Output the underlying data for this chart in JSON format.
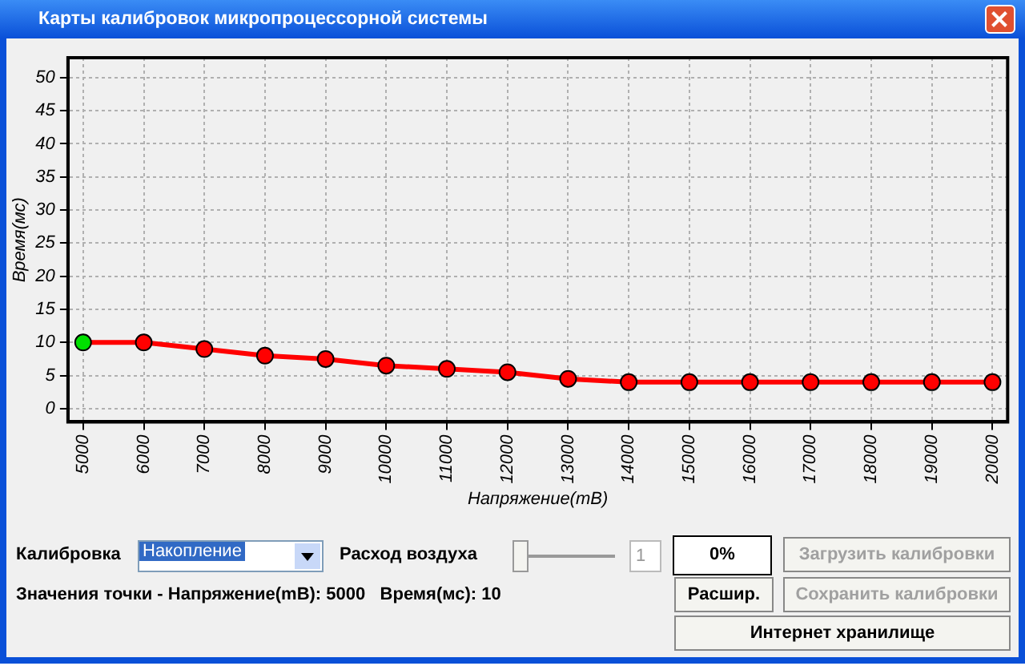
{
  "chart_data": {
    "type": "line",
    "title": "Карты калибровок микропроцессорной системы",
    "xlabel": "Напряжение(mB)",
    "ylabel": "Время(мс)",
    "x": [
      5000,
      6000,
      7000,
      8000,
      9000,
      10000,
      11000,
      12000,
      13000,
      14000,
      15000,
      16000,
      17000,
      18000,
      19000,
      20000
    ],
    "series": [
      {
        "color": "#ff0000",
        "colors": [
          "#00e000",
          "#ff0000",
          "#ff0000",
          "#ff0000",
          "#ff0000",
          "#ff0000",
          "#ff0000",
          "#ff0000",
          "#ff0000",
          "#ff0000",
          "#ff0000",
          "#ff0000",
          "#ff0000",
          "#ff0000",
          "#ff0000",
          "#ff0000"
        ],
        "values": [
          10,
          10,
          9,
          8,
          7.5,
          6.5,
          6,
          5.5,
          4.5,
          4,
          4,
          4,
          4,
          4,
          4,
          4
        ]
      }
    ],
    "xlim": [
      4750,
      20250
    ],
    "xticks": [
      5000,
      6000,
      7000,
      8000,
      9000,
      10000,
      11000,
      12000,
      13000,
      14000,
      15000,
      16000,
      17000,
      18000,
      19000,
      20000
    ],
    "ylim": [
      -2,
      53
    ],
    "yticks": [
      0,
      5,
      10,
      15,
      20,
      25,
      30,
      35,
      40,
      45,
      50
    ],
    "grid": true,
    "legend": false,
    "marker": "circle",
    "line_style": "solid",
    "annotations": [
      "Калибровка",
      "Накопление",
      "Расход воздуха",
      "1",
      "0%",
      "Загрузить калибровки",
      "Расшир.",
      "Сохранить калибровки",
      "Значения точки - Напряжение(mB): 5000   Время(мс): 10",
      "Интернет хранилище"
    ]
  }
}
